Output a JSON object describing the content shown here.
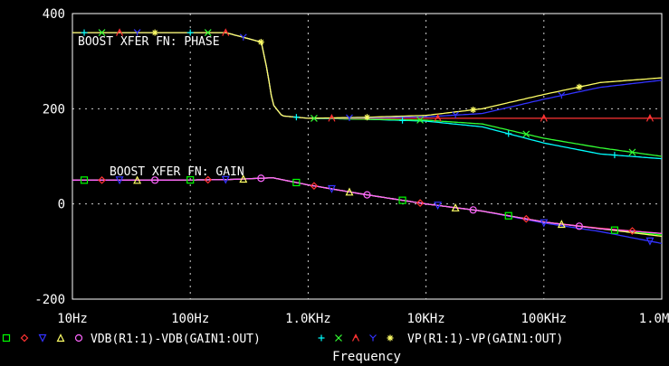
{
  "chart_data": {
    "type": "line",
    "xscale": "log",
    "xlabel": "Frequency",
    "x_tick_labels": [
      "10Hz",
      "100Hz",
      "1.0KHz",
      "10KHz",
      "100KHz",
      "1.0MHz"
    ],
    "x_ticks": [
      10,
      100,
      1000,
      10000,
      100000,
      1000000
    ],
    "xlim": [
      10,
      1000000
    ],
    "y_tick_labels": [
      "400",
      "200",
      "0",
      "-200"
    ],
    "y_ticks": [
      400,
      200,
      0,
      -200
    ],
    "ylim": [
      -200,
      400
    ],
    "grid": "dotted",
    "annotations": [
      "BOOST XFER FN: PHASE",
      "BOOST XFER FN: GAIN"
    ],
    "legend": [
      {
        "markers": [
          "□",
          "◇",
          "▽",
          "△",
          "○"
        ],
        "text": "VDB(R1:1)-VDB(GAIN1:OUT)"
      },
      {
        "markers": [
          "+",
          "×",
          "⅄",
          "Y",
          "✱"
        ],
        "text": "VP(R1:1)-VP(GAIN1:OUT)"
      }
    ],
    "series": [
      {
        "group": "gain",
        "color": "#00ff00",
        "marker": "square",
        "x": [
          10,
          20,
          60,
          200,
          500,
          1000,
          3000,
          10000,
          30000,
          100000,
          300000,
          1000000
        ],
        "y": [
          50,
          50,
          50,
          51,
          55,
          40,
          20,
          0,
          -15,
          -38,
          -52,
          -65
        ]
      },
      {
        "group": "gain",
        "color": "#ff3333",
        "marker": "diamond",
        "x": [
          10,
          20,
          60,
          200,
          500,
          1000,
          3000,
          10000,
          30000,
          100000,
          300000,
          1000000
        ],
        "y": [
          50,
          50,
          50,
          51,
          55,
          40,
          20,
          0,
          -15,
          -38,
          -51,
          -62
        ]
      },
      {
        "group": "gain",
        "color": "#3333ff",
        "marker": "triangle-down",
        "x": [
          10,
          20,
          60,
          200,
          500,
          1000,
          3000,
          10000,
          30000,
          100000,
          300000,
          1000000
        ],
        "y": [
          50,
          50,
          50,
          51,
          55,
          40,
          20,
          0,
          -15,
          -40,
          -58,
          -83
        ]
      },
      {
        "group": "gain",
        "color": "#ffff66",
        "marker": "triangle-up",
        "x": [
          10,
          20,
          60,
          200,
          500,
          1000,
          3000,
          10000,
          30000,
          100000,
          300000,
          1000000
        ],
        "y": [
          50,
          50,
          50,
          51,
          55,
          40,
          20,
          0,
          -15,
          -38,
          -52,
          -68
        ]
      },
      {
        "group": "gain",
        "color": "#ff66ff",
        "marker": "circle",
        "x": [
          10,
          20,
          60,
          200,
          500,
          1000,
          3000,
          10000,
          30000,
          100000,
          300000,
          1000000
        ],
        "y": [
          50,
          50,
          50,
          51,
          55,
          40,
          20,
          0,
          -15,
          -38,
          -52,
          -62
        ]
      },
      {
        "group": "phase",
        "color": "#00ffff",
        "marker": "plus",
        "x": [
          10,
          50,
          200,
          400,
          450,
          500,
          600,
          1000,
          3000,
          10000,
          30000,
          100000,
          300000,
          1000000
        ],
        "y": [
          360,
          360,
          360,
          340,
          280,
          210,
          185,
          180,
          178,
          174,
          162,
          128,
          105,
          95
        ]
      },
      {
        "group": "phase",
        "color": "#33ff33",
        "marker": "x",
        "x": [
          10,
          50,
          200,
          400,
          450,
          500,
          600,
          1000,
          3000,
          10000,
          30000,
          100000,
          300000,
          1000000
        ],
        "y": [
          360,
          360,
          360,
          340,
          280,
          210,
          185,
          180,
          178,
          176,
          168,
          138,
          118,
          100
        ]
      },
      {
        "group": "phase",
        "color": "#ff3333",
        "marker": "lambda",
        "x": [
          10,
          50,
          200,
          400,
          450,
          500,
          600,
          1000,
          3000,
          10000,
          30000,
          100000,
          300000,
          1000000
        ],
        "y": [
          360,
          360,
          360,
          340,
          280,
          210,
          185,
          180,
          180,
          180,
          180,
          180,
          180,
          180
        ]
      },
      {
        "group": "phase",
        "color": "#3333ff",
        "marker": "y",
        "x": [
          10,
          50,
          200,
          400,
          450,
          500,
          600,
          1000,
          3000,
          10000,
          30000,
          100000,
          300000,
          1000000
        ],
        "y": [
          360,
          360,
          360,
          340,
          280,
          210,
          185,
          180,
          181,
          183,
          190,
          220,
          245,
          260
        ]
      },
      {
        "group": "phase",
        "color": "#ffff66",
        "marker": "star",
        "x": [
          10,
          50,
          200,
          400,
          450,
          500,
          600,
          1000,
          3000,
          10000,
          30000,
          100000,
          300000,
          1000000
        ],
        "y": [
          360,
          360,
          360,
          340,
          280,
          210,
          185,
          180,
          182,
          186,
          200,
          230,
          255,
          265
        ]
      }
    ]
  }
}
